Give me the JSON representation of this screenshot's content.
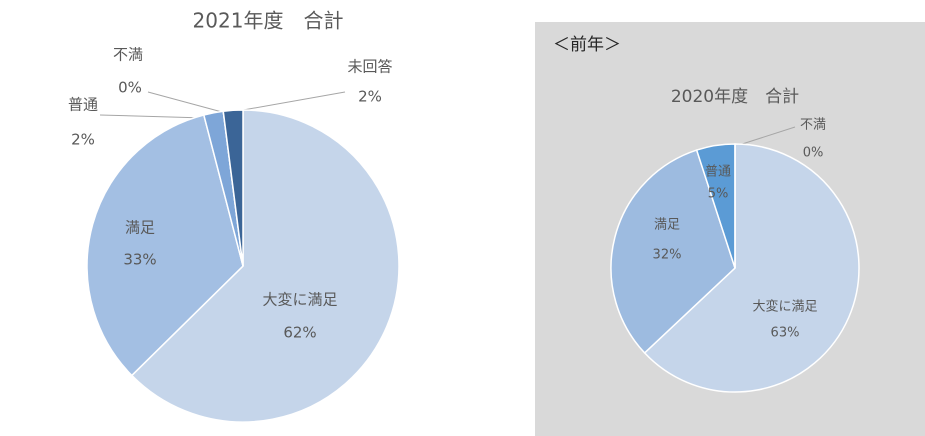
{
  "chart_data": [
    {
      "type": "pie",
      "title": "2021年度　合計",
      "categories": [
        "大変に満足",
        "満足",
        "普通",
        "不満",
        "未回答"
      ],
      "values": [
        62,
        33,
        2,
        0,
        2
      ],
      "value_labels": [
        "62%",
        "33%",
        "2%",
        "0%",
        "2%"
      ],
      "colors": [
        "#c5d5ea",
        "#a3bfe3",
        "#7ea6d8",
        "#b8c9e0",
        "#3b6597"
      ]
    },
    {
      "type": "pie",
      "label": "＜前年＞",
      "title": "2020年度　合計",
      "categories": [
        "大変に満足",
        "満足",
        "普通",
        "不満"
      ],
      "values": [
        63,
        32,
        5,
        0
      ],
      "value_labels": [
        "63%",
        "32%",
        "5%",
        "0%"
      ],
      "colors": [
        "#c5d5ea",
        "#9dbbe0",
        "#5b9bd5",
        "#3b6597"
      ]
    }
  ]
}
